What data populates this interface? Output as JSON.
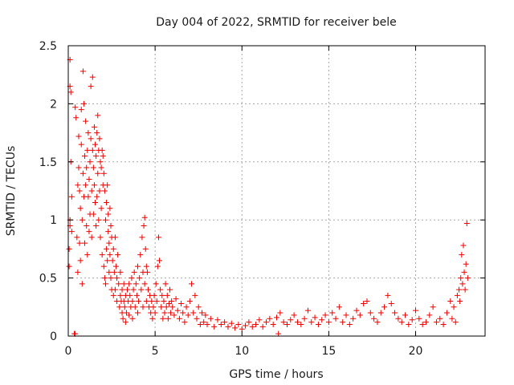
{
  "chart_data": {
    "type": "scatter",
    "title": "Day 004 of 2022, SRMTID for receiver bele",
    "xlabel": "GPS time / hours",
    "ylabel": "SRMTID / TECUs",
    "xlim": [
      0,
      24
    ],
    "ylim": [
      0,
      2.5
    ],
    "xticks": [
      0,
      5,
      10,
      15,
      20
    ],
    "xtick_labels": [
      "0",
      "5",
      "10",
      "15",
      "20"
    ],
    "yticks": [
      0,
      0.5,
      1,
      1.5,
      2,
      2.5
    ],
    "ytick_labels": [
      "0",
      "0.5",
      "1",
      "1.5",
      "2",
      "2.5"
    ],
    "grid": true,
    "marker": "+",
    "color": "#ee0000",
    "series": [
      {
        "name": "SRMTID",
        "points": [
          [
            0.05,
            0.6
          ],
          [
            0.05,
            0.75
          ],
          [
            0.1,
            1.0
          ],
          [
            0.1,
            0.95
          ],
          [
            0.1,
            2.38
          ],
          [
            0.1,
            2.15
          ],
          [
            0.15,
            2.1
          ],
          [
            0.15,
            1.5
          ],
          [
            0.2,
            1.2
          ],
          [
            0.2,
            0.9
          ],
          [
            0.35,
            0.02
          ],
          [
            0.4,
            0.02
          ],
          [
            0.4,
            1.97
          ],
          [
            0.45,
            1.88
          ],
          [
            0.5,
            0.85
          ],
          [
            0.55,
            1.3
          ],
          [
            0.55,
            0.55
          ],
          [
            0.6,
            1.72
          ],
          [
            0.6,
            1.45
          ],
          [
            0.65,
            1.25
          ],
          [
            0.65,
            0.8
          ],
          [
            0.7,
            1.1
          ],
          [
            0.7,
            0.65
          ],
          [
            0.75,
            1.65
          ],
          [
            0.75,
            1.95
          ],
          [
            0.8,
            0.45
          ],
          [
            0.8,
            1.0
          ],
          [
            0.85,
            2.28
          ],
          [
            0.85,
            1.4
          ],
          [
            0.9,
            2.0
          ],
          [
            0.9,
            1.2
          ],
          [
            0.95,
            1.55
          ],
          [
            0.95,
            0.8
          ],
          [
            1.0,
            1.85
          ],
          [
            1.0,
            1.3
          ],
          [
            1.05,
            0.95
          ],
          [
            1.05,
            1.45
          ],
          [
            1.1,
            1.6
          ],
          [
            1.1,
            0.7
          ],
          [
            1.15,
            1.75
          ],
          [
            1.15,
            1.2
          ],
          [
            1.2,
            1.35
          ],
          [
            1.2,
            0.9
          ],
          [
            1.25,
            1.5
          ],
          [
            1.25,
            1.05
          ],
          [
            1.3,
            2.15
          ],
          [
            1.3,
            1.7
          ],
          [
            1.35,
            1.25
          ],
          [
            1.35,
            0.85
          ],
          [
            1.4,
            2.23
          ],
          [
            1.4,
            1.6
          ],
          [
            1.45,
            1.45
          ],
          [
            1.45,
            1.05
          ],
          [
            1.5,
            1.8
          ],
          [
            1.5,
            1.3
          ],
          [
            1.55,
            1.65
          ],
          [
            1.55,
            1.15
          ],
          [
            1.6,
            1.55
          ],
          [
            1.6,
            0.95
          ],
          [
            1.65,
            1.75
          ],
          [
            1.65,
            1.2
          ],
          [
            1.7,
            1.9
          ],
          [
            1.7,
            1.4
          ],
          [
            1.75,
            1.6
          ],
          [
            1.75,
            1.0
          ],
          [
            1.8,
            1.7
          ],
          [
            1.8,
            1.25
          ],
          [
            1.85,
            1.5
          ],
          [
            1.85,
            0.85
          ],
          [
            1.9,
            1.45
          ],
          [
            1.9,
            1.1
          ],
          [
            1.95,
            1.6
          ],
          [
            1.95,
            0.7
          ],
          [
            2.0,
            1.55
          ],
          [
            2.0,
            1.3
          ],
          [
            2.05,
            1.4
          ],
          [
            2.05,
            0.6
          ],
          [
            2.1,
            1.25
          ],
          [
            2.1,
            0.5
          ],
          [
            2.15,
            1.0
          ],
          [
            2.15,
            0.45
          ],
          [
            2.2,
            1.15
          ],
          [
            2.2,
            0.75
          ],
          [
            2.25,
            1.3
          ],
          [
            2.25,
            0.65
          ],
          [
            2.3,
            1.05
          ],
          [
            2.3,
            0.9
          ],
          [
            2.35,
            0.8
          ],
          [
            2.35,
            0.55
          ],
          [
            2.4,
            1.1
          ],
          [
            2.4,
            0.7
          ],
          [
            2.45,
            0.95
          ],
          [
            2.45,
            0.5
          ],
          [
            2.5,
            0.85
          ],
          [
            2.5,
            0.4
          ],
          [
            2.55,
            0.65
          ],
          [
            2.6,
            0.75
          ],
          [
            2.6,
            0.35
          ],
          [
            2.65,
            0.55
          ],
          [
            2.7,
            0.85
          ],
          [
            2.7,
            0.4
          ],
          [
            2.75,
            0.6
          ],
          [
            2.8,
            0.5
          ],
          [
            2.8,
            0.3
          ],
          [
            2.85,
            0.7
          ],
          [
            2.9,
            0.45
          ],
          [
            2.95,
            0.25
          ],
          [
            3.0,
            0.35
          ],
          [
            3.0,
            0.55
          ],
          [
            3.05,
            0.3
          ],
          [
            3.1,
            0.4
          ],
          [
            3.1,
            0.2
          ],
          [
            3.15,
            0.15
          ],
          [
            3.2,
            0.3
          ],
          [
            3.2,
            0.45
          ],
          [
            3.25,
            0.25
          ],
          [
            3.3,
            0.35
          ],
          [
            3.3,
            0.12
          ],
          [
            3.35,
            0.2
          ],
          [
            3.4,
            0.4
          ],
          [
            3.45,
            0.3
          ],
          [
            3.5,
            0.45
          ],
          [
            3.5,
            0.18
          ],
          [
            3.55,
            0.35
          ],
          [
            3.6,
            0.25
          ],
          [
            3.65,
            0.5
          ],
          [
            3.7,
            0.3
          ],
          [
            3.7,
            0.15
          ],
          [
            3.75,
            0.4
          ],
          [
            3.8,
            0.55
          ],
          [
            3.85,
            0.25
          ],
          [
            3.9,
            0.45
          ],
          [
            3.95,
            0.35
          ],
          [
            4.0,
            0.6
          ],
          [
            4.0,
            0.2
          ],
          [
            4.05,
            0.3
          ],
          [
            4.1,
            0.5
          ],
          [
            4.15,
            0.7
          ],
          [
            4.2,
            0.4
          ],
          [
            4.25,
            0.85
          ],
          [
            4.3,
            0.55
          ],
          [
            4.3,
            0.25
          ],
          [
            4.35,
            0.95
          ],
          [
            4.4,
            1.02
          ],
          [
            4.4,
            0.45
          ],
          [
            4.45,
            0.75
          ],
          [
            4.5,
            0.6
          ],
          [
            4.5,
            0.3
          ],
          [
            4.55,
            0.55
          ],
          [
            4.6,
            0.4
          ],
          [
            4.65,
            0.25
          ],
          [
            4.7,
            0.35
          ],
          [
            4.75,
            0.2
          ],
          [
            4.8,
            0.3
          ],
          [
            4.85,
            0.15
          ],
          [
            4.9,
            0.25
          ],
          [
            4.95,
            0.35
          ],
          [
            5.0,
            0.2
          ],
          [
            5.05,
            0.45
          ],
          [
            5.1,
            0.3
          ],
          [
            5.15,
            0.6
          ],
          [
            5.2,
            0.85
          ],
          [
            5.25,
            0.65
          ],
          [
            5.3,
            0.4
          ],
          [
            5.35,
            0.25
          ],
          [
            5.4,
            0.35
          ],
          [
            5.45,
            0.15
          ],
          [
            5.5,
            0.3
          ],
          [
            5.55,
            0.2
          ],
          [
            5.6,
            0.45
          ],
          [
            5.65,
            0.25
          ],
          [
            5.7,
            0.35
          ],
          [
            5.75,
            0.15
          ],
          [
            5.8,
            0.28
          ],
          [
            5.85,
            0.4
          ],
          [
            5.9,
            0.2
          ],
          [
            5.95,
            0.3
          ],
          [
            6.0,
            0.25
          ],
          [
            6.1,
            0.18
          ],
          [
            6.2,
            0.32
          ],
          [
            6.3,
            0.22
          ],
          [
            6.4,
            0.15
          ],
          [
            6.5,
            0.28
          ],
          [
            6.6,
            0.2
          ],
          [
            6.7,
            0.12
          ],
          [
            6.8,
            0.25
          ],
          [
            6.9,
            0.18
          ],
          [
            7.0,
            0.3
          ],
          [
            7.1,
            0.45
          ],
          [
            7.2,
            0.2
          ],
          [
            7.3,
            0.35
          ],
          [
            7.4,
            0.15
          ],
          [
            7.5,
            0.25
          ],
          [
            7.6,
            0.1
          ],
          [
            7.7,
            0.2
          ],
          [
            7.8,
            0.12
          ],
          [
            7.9,
            0.18
          ],
          [
            8.0,
            0.1
          ],
          [
            8.2,
            0.15
          ],
          [
            8.4,
            0.08
          ],
          [
            8.6,
            0.14
          ],
          [
            8.8,
            0.1
          ],
          [
            9.0,
            0.12
          ],
          [
            9.2,
            0.08
          ],
          [
            9.4,
            0.11
          ],
          [
            9.6,
            0.07
          ],
          [
            9.8,
            0.1
          ],
          [
            10.0,
            0.06
          ],
          [
            10.2,
            0.09
          ],
          [
            10.4,
            0.12
          ],
          [
            10.6,
            0.08
          ],
          [
            10.8,
            0.1
          ],
          [
            11.0,
            0.14
          ],
          [
            11.2,
            0.08
          ],
          [
            11.4,
            0.12
          ],
          [
            11.6,
            0.15
          ],
          [
            11.8,
            0.1
          ],
          [
            12.0,
            0.16
          ],
          [
            12.1,
            0.02
          ],
          [
            12.2,
            0.2
          ],
          [
            12.4,
            0.12
          ],
          [
            12.6,
            0.1
          ],
          [
            12.8,
            0.14
          ],
          [
            13.0,
            0.18
          ],
          [
            13.2,
            0.12
          ],
          [
            13.4,
            0.1
          ],
          [
            13.6,
            0.15
          ],
          [
            13.8,
            0.22
          ],
          [
            14.0,
            0.12
          ],
          [
            14.2,
            0.16
          ],
          [
            14.4,
            0.1
          ],
          [
            14.6,
            0.14
          ],
          [
            14.8,
            0.18
          ],
          [
            15.0,
            0.12
          ],
          [
            15.2,
            0.2
          ],
          [
            15.4,
            0.15
          ],
          [
            15.6,
            0.25
          ],
          [
            15.8,
            0.12
          ],
          [
            16.0,
            0.18
          ],
          [
            16.2,
            0.1
          ],
          [
            16.4,
            0.15
          ],
          [
            16.6,
            0.22
          ],
          [
            16.8,
            0.18
          ],
          [
            17.0,
            0.28
          ],
          [
            17.2,
            0.3
          ],
          [
            17.4,
            0.2
          ],
          [
            17.6,
            0.15
          ],
          [
            17.8,
            0.12
          ],
          [
            18.0,
            0.2
          ],
          [
            18.2,
            0.25
          ],
          [
            18.4,
            0.35
          ],
          [
            18.6,
            0.28
          ],
          [
            18.8,
            0.2
          ],
          [
            19.0,
            0.15
          ],
          [
            19.2,
            0.12
          ],
          [
            19.4,
            0.18
          ],
          [
            19.6,
            0.1
          ],
          [
            19.8,
            0.14
          ],
          [
            20.0,
            0.22
          ],
          [
            20.2,
            0.15
          ],
          [
            20.4,
            0.1
          ],
          [
            20.6,
            0.12
          ],
          [
            20.8,
            0.18
          ],
          [
            21.0,
            0.25
          ],
          [
            21.2,
            0.12
          ],
          [
            21.4,
            0.15
          ],
          [
            21.6,
            0.1
          ],
          [
            21.8,
            0.2
          ],
          [
            22.0,
            0.3
          ],
          [
            22.1,
            0.15
          ],
          [
            22.2,
            0.25
          ],
          [
            22.3,
            0.12
          ],
          [
            22.4,
            0.35
          ],
          [
            22.5,
            0.4
          ],
          [
            22.55,
            0.3
          ],
          [
            22.6,
            0.5
          ],
          [
            22.65,
            0.7
          ],
          [
            22.7,
            0.45
          ],
          [
            22.75,
            0.78
          ],
          [
            22.8,
            0.55
          ],
          [
            22.85,
            0.4
          ],
          [
            22.9,
            0.62
          ],
          [
            22.95,
            0.97
          ],
          [
            23.0,
            0.5
          ]
        ]
      }
    ]
  }
}
